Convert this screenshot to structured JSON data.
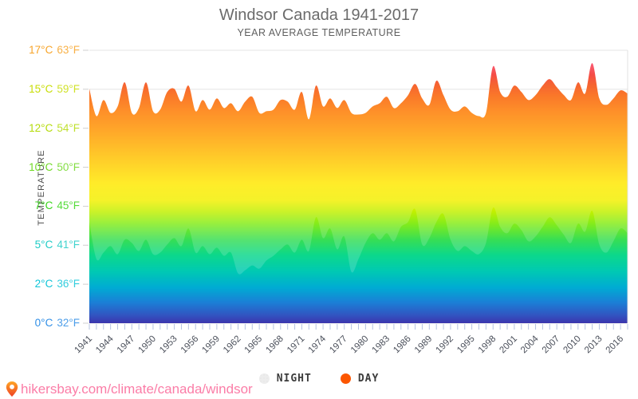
{
  "header": {
    "title": "Windsor Canada 1941-2017",
    "subtitle": "YEAR AVERAGE TEMPERATURE"
  },
  "y_axis": {
    "label": "TEMPERATURE",
    "ticks": [
      {
        "c": "17°C",
        "f": "63°F",
        "color": "#f7a428"
      },
      {
        "c": "15°C",
        "f": "59°F",
        "color": "#c8dd04"
      },
      {
        "c": "12°C",
        "f": "54°F",
        "color": "#b5db0a"
      },
      {
        "c": "10°C",
        "f": "50°F",
        "color": "#6fd824"
      },
      {
        "c": "7°C",
        "f": "45°F",
        "color": "#38d61a"
      },
      {
        "c": "5°C",
        "f": "41°F",
        "color": "#1fccc6"
      },
      {
        "c": "2°C",
        "f": "36°F",
        "color": "#10c5d8"
      },
      {
        "c": "0°C",
        "f": "32°F",
        "color": "#2f8ee6"
      }
    ]
  },
  "legend": {
    "items": [
      {
        "label": "NIGHT",
        "color": "#ededed"
      },
      {
        "label": "DAY",
        "color": "#fc5600"
      }
    ]
  },
  "footer": {
    "url": "hikersbay.com/climate/canada/windsor",
    "pin_icon": "map-pin-icon"
  },
  "chart_data": {
    "type": "area",
    "title": "Windsor Canada 1941-2017",
    "subtitle": "YEAR AVERAGE TEMPERATURE",
    "ylabel": "TEMPERATURE",
    "x_start": 1941,
    "x_end": 2017,
    "ylim_c": [
      0,
      17
    ],
    "grid": true,
    "legend_position": "bottom",
    "x_tick_labels": [
      "1941",
      "1944",
      "1947",
      "1950",
      "1953",
      "1956",
      "1959",
      "1962",
      "1965",
      "1968",
      "1971",
      "1974",
      "1977",
      "1980",
      "1983",
      "1986",
      "1989",
      "1992",
      "1995",
      "1998",
      "2001",
      "2004",
      "2007",
      "2010",
      "2013",
      "2016"
    ],
    "series": [
      {
        "name": "DAY",
        "unit": "C",
        "values": [
          14.6,
          12.9,
          13.9,
          13.1,
          13.5,
          15.0,
          13.1,
          13.4,
          15.0,
          13.2,
          13.3,
          14.4,
          14.6,
          13.8,
          14.8,
          13.2,
          13.9,
          13.3,
          14.0,
          13.4,
          13.7,
          13.2,
          13.8,
          14.1,
          13.1,
          13.2,
          13.3,
          13.9,
          13.8,
          13.3,
          14.4,
          12.7,
          14.8,
          13.5,
          14.0,
          13.4,
          13.9,
          13.1,
          13.0,
          13.1,
          13.5,
          13.7,
          14.1,
          13.4,
          13.7,
          14.2,
          14.9,
          14.0,
          13.6,
          15.1,
          14.2,
          13.3,
          13.2,
          13.5,
          13.1,
          12.9,
          13.1,
          16.0,
          14.4,
          14.1,
          14.8,
          14.4,
          13.9,
          14.2,
          14.8,
          15.2,
          14.7,
          14.2,
          13.9,
          15.0,
          14.3,
          16.2,
          14.0,
          13.6,
          14.0,
          14.5,
          14.3
        ]
      },
      {
        "name": "NIGHT",
        "unit": "C",
        "values": [
          6.3,
          4.0,
          4.4,
          4.8,
          4.3,
          5.2,
          5.0,
          4.5,
          5.2,
          4.3,
          4.4,
          4.9,
          5.3,
          4.8,
          5.9,
          4.4,
          4.8,
          4.3,
          4.7,
          4.2,
          4.4,
          3.1,
          3.3,
          3.6,
          3.4,
          3.9,
          4.2,
          4.6,
          4.9,
          4.4,
          5.2,
          4.5,
          6.6,
          5.3,
          5.9,
          4.6,
          5.4,
          3.2,
          4.0,
          5.0,
          5.6,
          5.2,
          5.6,
          5.1,
          6.0,
          6.3,
          7.1,
          4.9,
          5.3,
          6.3,
          6.8,
          5.2,
          4.5,
          4.8,
          4.5,
          4.3,
          5.0,
          7.2,
          6.0,
          5.6,
          6.2,
          5.8,
          5.1,
          5.4,
          6.0,
          6.6,
          6.1,
          5.5,
          5.0,
          6.2,
          5.7,
          7.0,
          4.9,
          4.4,
          5.1,
          5.9,
          5.6
        ]
      }
    ],
    "gradient_stops": [
      {
        "offset": 0.0,
        "color": "#fd2f62"
      },
      {
        "offset": 0.056,
        "color": "#f93a51"
      },
      {
        "offset": 0.09,
        "color": "#f32b23"
      },
      {
        "offset": 0.125,
        "color": "#f4460a"
      },
      {
        "offset": 0.17,
        "color": "#fa6000"
      },
      {
        "offset": 0.225,
        "color": "#fe7b00"
      },
      {
        "offset": 0.3,
        "color": "#ff9900"
      },
      {
        "offset": 0.4,
        "color": "#ffc400"
      },
      {
        "offset": 0.49,
        "color": "#ffe900"
      },
      {
        "offset": 0.55,
        "color": "#f3f000"
      },
      {
        "offset": 0.59,
        "color": "#c3f000"
      },
      {
        "offset": 0.635,
        "color": "#84ec1a"
      },
      {
        "offset": 0.695,
        "color": "#36de55"
      },
      {
        "offset": 0.75,
        "color": "#0cd88b"
      },
      {
        "offset": 0.81,
        "color": "#00c9b3"
      },
      {
        "offset": 0.87,
        "color": "#00abd3"
      },
      {
        "offset": 0.925,
        "color": "#1b7ed6"
      },
      {
        "offset": 0.97,
        "color": "#3155c1"
      },
      {
        "offset": 1.0,
        "color": "#3b34ad"
      }
    ]
  }
}
